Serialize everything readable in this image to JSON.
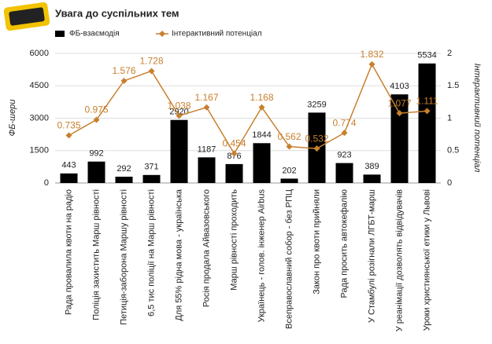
{
  "chart_data": {
    "type": "bar",
    "title": "Увага до суспільних тем",
    "categories": [
      "Рада провалила квоти на радіо",
      "Поліція захистить Марш рівності",
      "Петиція-заборона Маршу рівності",
      "6,5 тис поліції на Марш рівності",
      "Для 55% рідна мова - українська",
      "Росія продала Айвазовського",
      "Марш рівності проходить",
      "Українець - голов. інженер Airbus",
      "Всеправославний собор - без РПЦ",
      "Закон про квоти прийняли",
      "Рада просить автокефалію",
      "У Стамбулі розігнали ЛГБТ-марш",
      "У реанімації дозволять відвідувачів",
      "Уроки християнської етики у Львові"
    ],
    "series": [
      {
        "name": "ФБ-взаємодія",
        "type": "bar",
        "color": "#000000",
        "values": [
          443,
          992,
          292,
          371,
          2920,
          1187,
          876,
          1844,
          202,
          3259,
          923,
          389,
          4103,
          5534
        ]
      },
      {
        "name": "Інтерактивний потенціал",
        "type": "line",
        "axis": "y2",
        "color": "#c8802e",
        "values": [
          0.735,
          0.975,
          1.576,
          1.728,
          1.038,
          1.167,
          0.454,
          1.168,
          0.562,
          0.532,
          0.774,
          1.832,
          1.077,
          1.111
        ]
      }
    ],
    "y_label": "ФБ-шери",
    "y2_label": "Інтерактивний потенціал",
    "ylim": [
      0,
      6000
    ],
    "yticks": [
      0,
      1500,
      3000,
      4500,
      6000
    ],
    "y2lim": [
      0,
      2
    ],
    "y2ticks": [
      0,
      0.5,
      1,
      1.5,
      2
    ],
    "grid": true,
    "legend": "top"
  }
}
